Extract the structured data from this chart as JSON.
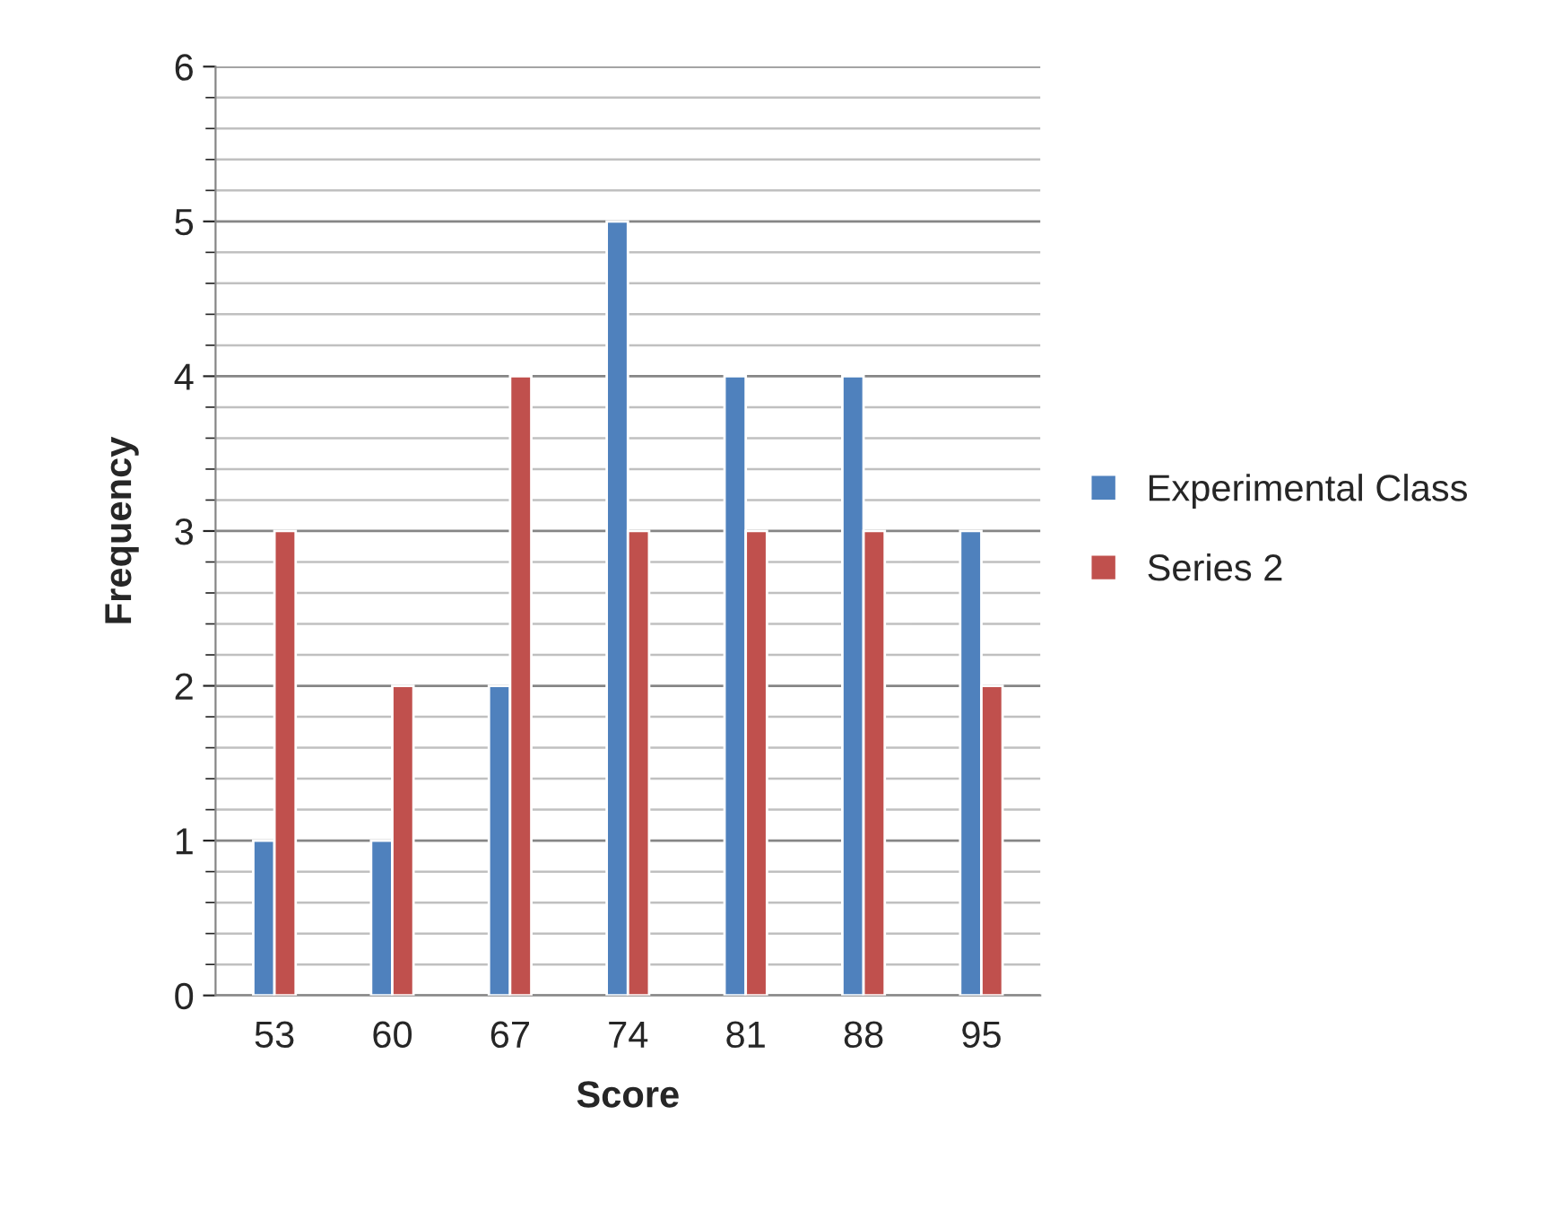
{
  "chart_data": {
    "type": "bar",
    "xlabel": "Score",
    "ylabel": "Frequency",
    "categories": [
      "53",
      "60",
      "67",
      "74",
      "81",
      "88",
      "95"
    ],
    "series": [
      {
        "name": "Experimental Class",
        "color": "#4f81bd",
        "values": [
          1,
          1,
          2,
          5,
          4,
          4,
          3
        ]
      },
      {
        "name": "Series 2",
        "color": "#c0504d",
        "values": [
          3,
          2,
          4,
          3,
          3,
          3,
          2
        ]
      }
    ],
    "ylim": [
      0,
      6
    ],
    "yticks": [
      0,
      1,
      2,
      3,
      4,
      5,
      6
    ],
    "grid": "y",
    "legend": "right"
  }
}
